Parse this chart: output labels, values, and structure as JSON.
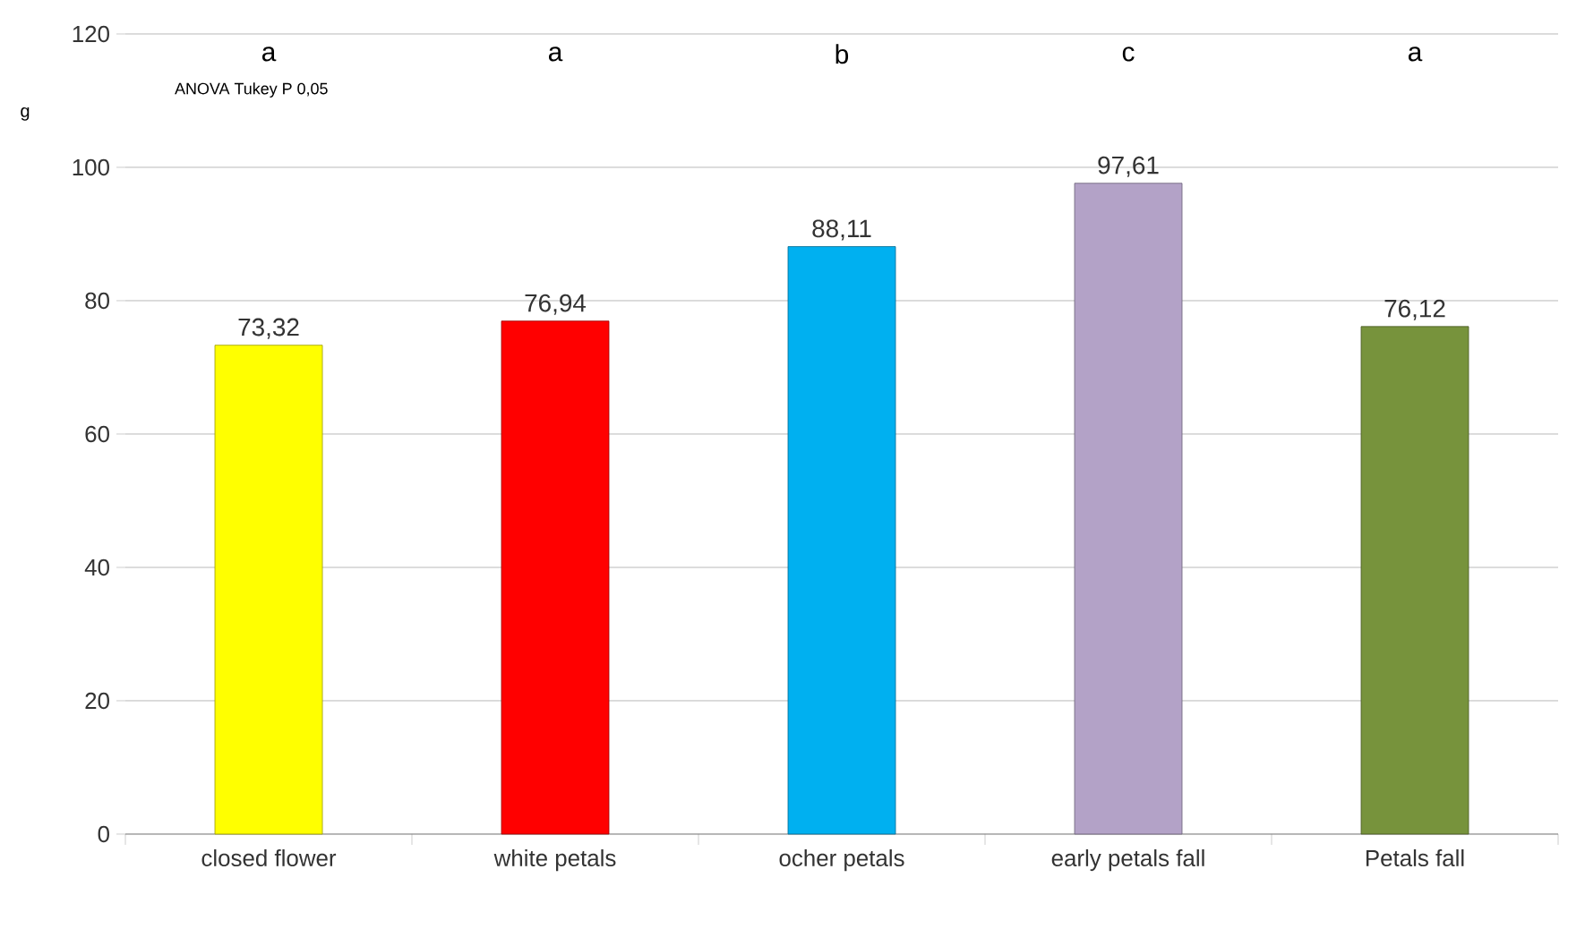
{
  "chart_data": {
    "type": "bar",
    "ylabel": "g",
    "categories": [
      "closed flower",
      "white petals",
      "ocher petals",
      "early petals fall",
      "Petals fall"
    ],
    "values": [
      73.32,
      76.94,
      88.11,
      97.61,
      76.12
    ],
    "value_labels": [
      "73,32",
      "76,94",
      "88,11",
      "97,61",
      "76,12"
    ],
    "colors": [
      "#ffff00",
      "#ff0000",
      "#00b0f0",
      "#b3a2c7",
      "#77933c"
    ],
    "ylim": [
      0,
      120
    ],
    "yticks": [
      0,
      20,
      40,
      60,
      80,
      100,
      120
    ],
    "grid": "y",
    "annotations": [
      "ANOVA Tukey P 0,05",
      "a",
      "a",
      "b",
      "c",
      "a"
    ]
  }
}
